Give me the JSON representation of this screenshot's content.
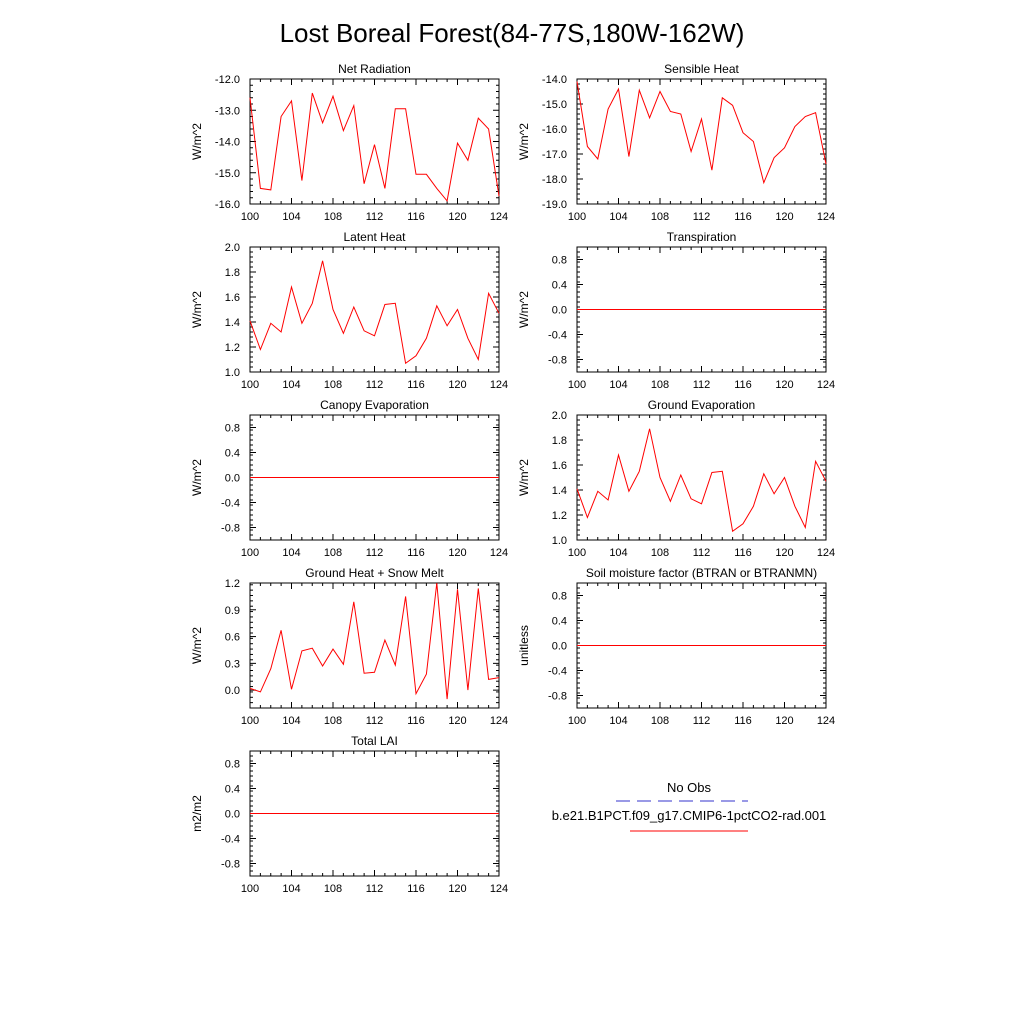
{
  "title": "Lost Boreal Forest(84-77S,180W-162W)",
  "legend": {
    "obs_label": "No Obs",
    "model_label": "b.e21.B1PCT.f09_g17.CMIP6-1pctCO2-rad.001",
    "obs_color": "#3333cc",
    "model_color": "#ff0000"
  },
  "line_color": "#ff0000",
  "chart_data": [
    {
      "type": "line",
      "title": "Net Radiation",
      "ylabel": "W/m^2",
      "xlim": [
        100,
        124
      ],
      "ylim": [
        -16,
        -12
      ],
      "xticks": [
        100,
        104,
        108,
        112,
        116,
        120,
        124
      ],
      "yticks": [
        "-16.0",
        "-15.0",
        "-14.0",
        "-13.0",
        "-12.0"
      ],
      "x": [
        100,
        101,
        102,
        103,
        104,
        105,
        106,
        107,
        108,
        109,
        110,
        111,
        112,
        113,
        114,
        115,
        116,
        117,
        118,
        119,
        120,
        121,
        122,
        123,
        124
      ],
      "series": [
        {
          "values": [
            -12.6,
            -15.5,
            -15.55,
            -13.2,
            -12.7,
            -15.25,
            -12.45,
            -13.4,
            -12.55,
            -13.65,
            -12.85,
            -15.35,
            -14.1,
            -15.5,
            -12.95,
            -12.95,
            -15.05,
            -15.05,
            -15.5,
            -15.9,
            -14.05,
            -14.6,
            -13.25,
            -13.6,
            -15.75
          ]
        }
      ]
    },
    {
      "type": "line",
      "title": "Sensible Heat",
      "ylabel": "W/m^2",
      "xlim": [
        100,
        124
      ],
      "ylim": [
        -19,
        -14
      ],
      "xticks": [
        100,
        104,
        108,
        112,
        116,
        120,
        124
      ],
      "yticks": [
        "-19.0",
        "-18.0",
        "-17.0",
        "-16.0",
        "-15.0",
        "-14.0"
      ],
      "x": [
        100,
        101,
        102,
        103,
        104,
        105,
        106,
        107,
        108,
        109,
        110,
        111,
        112,
        113,
        114,
        115,
        116,
        117,
        118,
        119,
        120,
        121,
        122,
        123,
        124
      ],
      "series": [
        {
          "values": [
            -14.1,
            -16.7,
            -17.2,
            -15.2,
            -14.4,
            -17.1,
            -14.45,
            -15.55,
            -14.5,
            -15.3,
            -15.4,
            -16.9,
            -15.6,
            -17.65,
            -14.75,
            -15.05,
            -16.15,
            -16.5,
            -18.15,
            -17.15,
            -16.75,
            -15.9,
            -15.5,
            -15.35,
            -17.4
          ]
        }
      ]
    },
    {
      "type": "line",
      "title": "Latent Heat",
      "ylabel": "W/m^2",
      "xlim": [
        100,
        124
      ],
      "ylim": [
        1.0,
        2.0
      ],
      "xticks": [
        100,
        104,
        108,
        112,
        116,
        120,
        124
      ],
      "yticks": [
        "1.0",
        "1.2",
        "1.4",
        "1.6",
        "1.8",
        "2.0"
      ],
      "x": [
        100,
        101,
        102,
        103,
        104,
        105,
        106,
        107,
        108,
        109,
        110,
        111,
        112,
        113,
        114,
        115,
        116,
        117,
        118,
        119,
        120,
        121,
        122,
        123,
        124
      ],
      "series": [
        {
          "values": [
            1.41,
            1.18,
            1.39,
            1.32,
            1.68,
            1.39,
            1.55,
            1.89,
            1.5,
            1.31,
            1.52,
            1.33,
            1.29,
            1.54,
            1.55,
            1.07,
            1.13,
            1.27,
            1.53,
            1.37,
            1.5,
            1.27,
            1.1,
            1.63,
            1.47
          ]
        }
      ]
    },
    {
      "type": "line",
      "title": "Transpiration",
      "ylabel": "W/m^2",
      "xlim": [
        100,
        124
      ],
      "ylim": [
        -1.0,
        1.0
      ],
      "xticks": [
        100,
        104,
        108,
        112,
        116,
        120,
        124
      ],
      "yticks": [
        "-0.8",
        "-0.4",
        "0.0",
        "0.4",
        "0.8"
      ],
      "x": [
        100,
        124
      ],
      "series": [
        {
          "values": [
            0,
            0
          ]
        }
      ]
    },
    {
      "type": "line",
      "title": "Canopy Evaporation",
      "ylabel": "W/m^2",
      "xlim": [
        100,
        124
      ],
      "ylim": [
        -1.0,
        1.0
      ],
      "xticks": [
        100,
        104,
        108,
        112,
        116,
        120,
        124
      ],
      "yticks": [
        "-0.8",
        "-0.4",
        "0.0",
        "0.4",
        "0.8"
      ],
      "x": [
        100,
        124
      ],
      "series": [
        {
          "values": [
            0,
            0
          ]
        }
      ]
    },
    {
      "type": "line",
      "title": "Ground Evaporation",
      "ylabel": "W/m^2",
      "xlim": [
        100,
        124
      ],
      "ylim": [
        1.0,
        2.0
      ],
      "xticks": [
        100,
        104,
        108,
        112,
        116,
        120,
        124
      ],
      "yticks": [
        "1.0",
        "1.2",
        "1.4",
        "1.6",
        "1.8",
        "2.0"
      ],
      "x": [
        100,
        101,
        102,
        103,
        104,
        105,
        106,
        107,
        108,
        109,
        110,
        111,
        112,
        113,
        114,
        115,
        116,
        117,
        118,
        119,
        120,
        121,
        122,
        123,
        124
      ],
      "series": [
        {
          "values": [
            1.41,
            1.18,
            1.39,
            1.32,
            1.68,
            1.39,
            1.55,
            1.89,
            1.5,
            1.31,
            1.52,
            1.33,
            1.29,
            1.54,
            1.55,
            1.07,
            1.13,
            1.27,
            1.53,
            1.37,
            1.5,
            1.27,
            1.1,
            1.63,
            1.47
          ]
        }
      ]
    },
    {
      "type": "line",
      "title": "Ground Heat + Snow Melt",
      "ylabel": "W/m^2",
      "xlim": [
        100,
        124
      ],
      "ylim": [
        -0.2,
        1.2
      ],
      "xticks": [
        100,
        104,
        108,
        112,
        116,
        120,
        124
      ],
      "yticks": [
        "0.0",
        "0.3",
        "0.6",
        "0.9",
        "1.2"
      ],
      "x": [
        100,
        101,
        102,
        103,
        104,
        105,
        106,
        107,
        108,
        109,
        110,
        111,
        112,
        113,
        114,
        115,
        116,
        117,
        118,
        119,
        120,
        121,
        122,
        123,
        124
      ],
      "series": [
        {
          "values": [
            0.02,
            -0.02,
            0.24,
            0.67,
            0.01,
            0.44,
            0.47,
            0.27,
            0.46,
            0.29,
            0.99,
            0.19,
            0.2,
            0.56,
            0.28,
            1.05,
            -0.04,
            0.18,
            1.2,
            -0.1,
            1.13,
            0.0,
            1.14,
            0.12,
            0.14
          ]
        }
      ]
    },
    {
      "type": "line",
      "title": "Soil moisture factor (BTRAN or BTRANMN)",
      "ylabel": "unitless",
      "xlim": [
        100,
        124
      ],
      "ylim": [
        -1.0,
        1.0
      ],
      "xticks": [
        100,
        104,
        108,
        112,
        116,
        120,
        124
      ],
      "yticks": [
        "-0.8",
        "-0.4",
        "0.0",
        "0.4",
        "0.8"
      ],
      "x": [
        100,
        124
      ],
      "series": [
        {
          "values": [
            0,
            0
          ]
        }
      ]
    },
    {
      "type": "line",
      "title": "Total LAI",
      "ylabel": "m2/m2",
      "xlim": [
        100,
        124
      ],
      "ylim": [
        -1.0,
        1.0
      ],
      "xticks": [
        100,
        104,
        108,
        112,
        116,
        120,
        124
      ],
      "yticks": [
        "-0.8",
        "-0.4",
        "0.0",
        "0.4",
        "0.8"
      ],
      "x": [
        100,
        124
      ],
      "series": [
        {
          "values": [
            0,
            0
          ]
        }
      ]
    }
  ]
}
